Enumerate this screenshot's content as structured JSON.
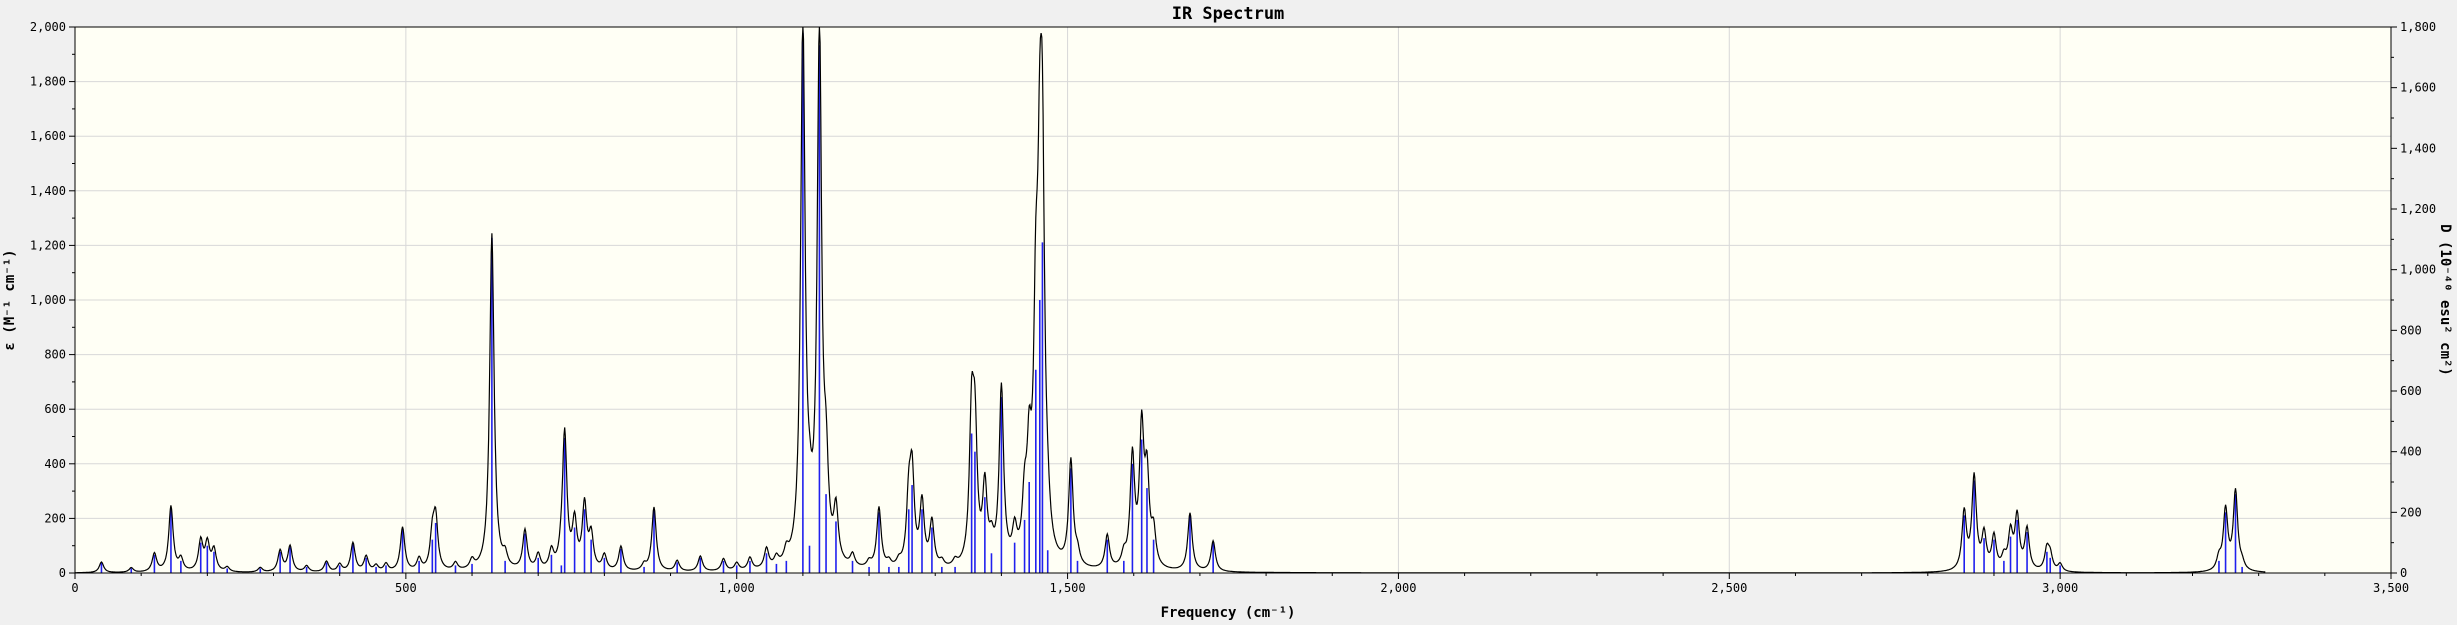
{
  "chart_data": {
    "type": "line",
    "title": "IR Spectrum",
    "xlabel": "Frequency (cm⁻¹)",
    "ylabel_left": "ε (M⁻¹ cm⁻¹)",
    "ylabel_right": "D (10⁻⁴⁰ esu² cm²)",
    "xlim": [
      0,
      3500
    ],
    "ylim_left": [
      0,
      2000
    ],
    "ylim_right": [
      0,
      1800
    ],
    "x_ticks": [
      0,
      500,
      1000,
      1500,
      2000,
      2500,
      3000,
      3500
    ],
    "x_tick_labels": [
      "0",
      "500",
      "1,000",
      "1,500",
      "2,000",
      "2,500",
      "3,000",
      "3,500"
    ],
    "y_left_ticks": [
      0,
      200,
      400,
      600,
      800,
      1000,
      1200,
      1400,
      1600,
      1800,
      2000
    ],
    "y_left_tick_labels": [
      "0",
      "200",
      "400",
      "600",
      "800",
      "1,000",
      "1,200",
      "1,400",
      "1,600",
      "1,800",
      "2,000"
    ],
    "y_right_ticks": [
      0,
      200,
      400,
      600,
      800,
      1000,
      1200,
      1400,
      1600,
      1800
    ],
    "y_right_tick_labels": [
      "0",
      "200",
      "400",
      "600",
      "800",
      "1,000",
      "1,200",
      "1,400",
      "1,600",
      "1,800"
    ],
    "grid": true,
    "colors": {
      "spectrum": "#000000",
      "sticks": "#2020ee",
      "plot_bg": "#fffff5",
      "grid": "#d8d8d8"
    },
    "series": [
      {
        "role": "spectrum",
        "axis": "left",
        "style": "broadened-lorentzian",
        "x_range": [
          0,
          3310
        ]
      },
      {
        "role": "sticks",
        "axis": "right",
        "style": "vertical-sticks",
        "points": [
          [
            40,
            35
          ],
          [
            85,
            15
          ],
          [
            120,
            60
          ],
          [
            145,
            215
          ],
          [
            160,
            40
          ],
          [
            190,
            100
          ],
          [
            200,
            90
          ],
          [
            210,
            70
          ],
          [
            230,
            15
          ],
          [
            280,
            15
          ],
          [
            310,
            70
          ],
          [
            325,
            85
          ],
          [
            350,
            20
          ],
          [
            380,
            35
          ],
          [
            400,
            25
          ],
          [
            420,
            95
          ],
          [
            440,
            50
          ],
          [
            455,
            20
          ],
          [
            470,
            25
          ],
          [
            495,
            145
          ],
          [
            520,
            40
          ],
          [
            540,
            110
          ],
          [
            545,
            165
          ],
          [
            575,
            25
          ],
          [
            600,
            30
          ],
          [
            630,
            1105
          ],
          [
            650,
            40
          ],
          [
            680,
            130
          ],
          [
            700,
            50
          ],
          [
            720,
            60
          ],
          [
            735,
            25
          ],
          [
            740,
            445
          ],
          [
            755,
            150
          ],
          [
            770,
            210
          ],
          [
            780,
            110
          ],
          [
            800,
            50
          ],
          [
            825,
            80
          ],
          [
            860,
            20
          ],
          [
            875,
            210
          ],
          [
            910,
            35
          ],
          [
            945,
            50
          ],
          [
            980,
            40
          ],
          [
            1000,
            25
          ],
          [
            1020,
            40
          ],
          [
            1045,
            65
          ],
          [
            1060,
            30
          ],
          [
            1075,
            40
          ],
          [
            1100,
            1780
          ],
          [
            1110,
            90
          ],
          [
            1125,
            1740
          ],
          [
            1135,
            260
          ],
          [
            1150,
            170
          ],
          [
            1175,
            40
          ],
          [
            1200,
            20
          ],
          [
            1215,
            200
          ],
          [
            1230,
            20
          ],
          [
            1245,
            20
          ],
          [
            1260,
            210
          ],
          [
            1265,
            290
          ],
          [
            1280,
            210
          ],
          [
            1295,
            150
          ],
          [
            1310,
            20
          ],
          [
            1330,
            20
          ],
          [
            1355,
            460
          ],
          [
            1360,
            400
          ],
          [
            1375,
            250
          ],
          [
            1385,
            65
          ],
          [
            1400,
            580
          ],
          [
            1420,
            100
          ],
          [
            1435,
            175
          ],
          [
            1442,
            300
          ],
          [
            1452,
            670
          ],
          [
            1458,
            900
          ],
          [
            1462,
            1090
          ],
          [
            1470,
            75
          ],
          [
            1505,
            345
          ],
          [
            1515,
            40
          ],
          [
            1560,
            110
          ],
          [
            1585,
            40
          ],
          [
            1598,
            360
          ],
          [
            1612,
            440
          ],
          [
            1620,
            280
          ],
          [
            1630,
            110
          ],
          [
            1685,
            190
          ],
          [
            1720,
            100
          ],
          [
            2855,
            190
          ],
          [
            2870,
            305
          ],
          [
            2885,
            115
          ],
          [
            2900,
            110
          ],
          [
            2915,
            40
          ],
          [
            2925,
            120
          ],
          [
            2935,
            175
          ],
          [
            2950,
            135
          ],
          [
            2980,
            70
          ],
          [
            2985,
            50
          ],
          [
            3000,
            25
          ],
          [
            3240,
            40
          ],
          [
            3250,
            200
          ],
          [
            3265,
            260
          ],
          [
            3275,
            20
          ]
        ]
      }
    ]
  }
}
